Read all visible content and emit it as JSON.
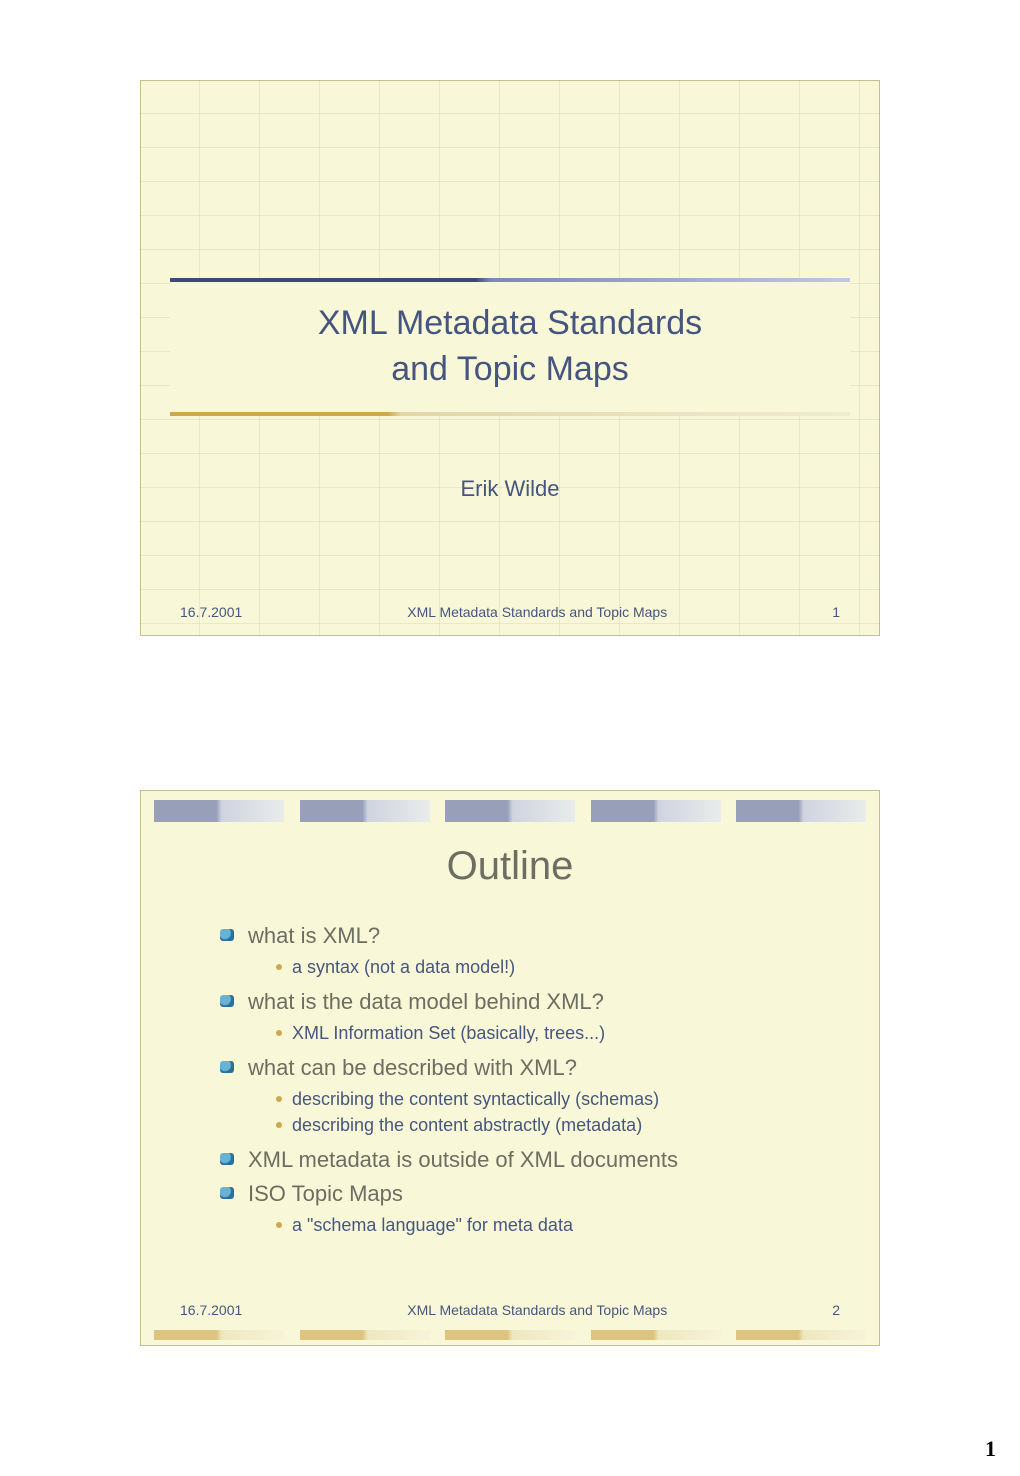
{
  "document": {
    "page_number": "1"
  },
  "slide1": {
    "title_line1": "XML Metadata Standards",
    "title_line2": "and Topic Maps",
    "author": "Erik Wilde",
    "date": "16.7.2001",
    "footer_center": "XML Metadata Standards and Topic Maps",
    "slide_number": "1",
    "colors": {
      "background": "#f8f8d8",
      "title_text": "#46557f",
      "footer_text": "#46557f",
      "grid_line": "rgba(120,120,70,0.25)",
      "top_rule_dark": "#3d4a76",
      "top_rule_light": "#c0c8e8",
      "bottom_rule_dark": "#cfa74d",
      "bottom_rule_light": "#f0ecd4"
    },
    "fonts": {
      "title_pt": 34,
      "author_pt": 22,
      "footer_pt": 14
    }
  },
  "slide2": {
    "title": "Outline",
    "bullets": [
      {
        "text": "what is XML?",
        "sub": [
          "a syntax (not a data model!)"
        ]
      },
      {
        "text": "what is the data model behind XML?",
        "sub": [
          "XML Information Set (basically, trees...)"
        ]
      },
      {
        "text": "what can be described with XML?",
        "sub": [
          "describing the content syntactically (schemas)",
          "describing the content abstractly (metadata)"
        ]
      },
      {
        "text": "XML metadata is outside of XML documents",
        "sub": []
      },
      {
        "text": "ISO Topic Maps",
        "sub": [
          "a \"schema language\" for meta data"
        ]
      }
    ],
    "date": "16.7.2001",
    "footer_center": "XML Metadata Standards and Topic Maps",
    "slide_number": "2",
    "top_strip_segments": 5,
    "bottom_strip_segments": 5,
    "colors": {
      "background": "#f8f8d8",
      "title_text": "#6d6d62",
      "level1_text": "#6d6d62",
      "level2_text": "#47567f",
      "level1_bullet_a": "#66b2d8",
      "level1_bullet_b": "#2e6f96",
      "level2_bullet": "#cfa74d",
      "footer_text": "#46557f",
      "top_strip_dark": "#646fa6",
      "top_strip_light": "#e2e6f4",
      "bottom_strip_dark": "#cfa74d",
      "bottom_strip_light": "#f5f1dc"
    },
    "fonts": {
      "title_pt": 40,
      "level1_pt": 22,
      "level2_pt": 18,
      "footer_pt": 14
    }
  }
}
